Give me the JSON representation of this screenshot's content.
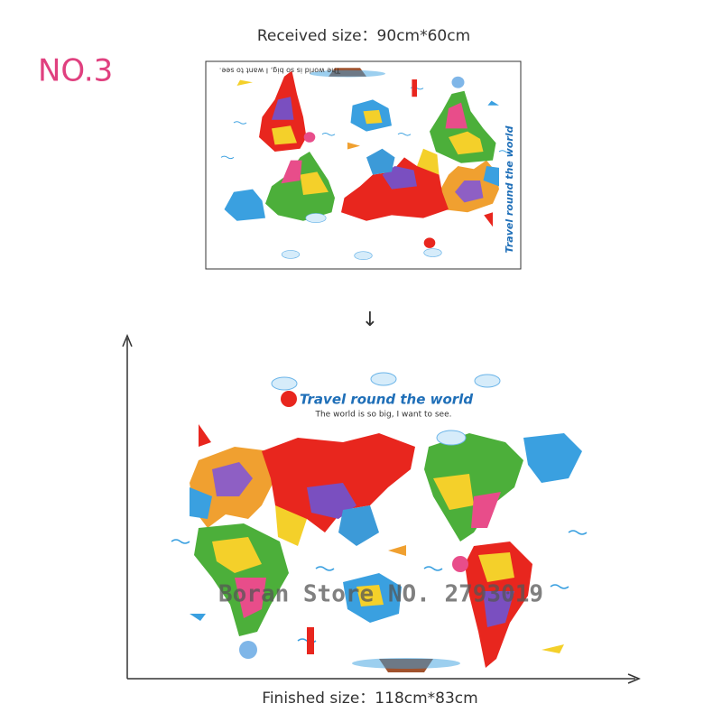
{
  "badge": "NO.3",
  "received_size": "Received size：90cm*60cm",
  "received_sheet": {
    "tagline": "The world is so big, I want to see.",
    "title": "Travel round the world"
  },
  "arrow": "↓",
  "finished_map": {
    "title": "Travel round the world",
    "tagline": "The world is so big, I want to see."
  },
  "watermark": "Boran Store NO. 2793019",
  "finished_size": "Finished size：118cm*83cm"
}
